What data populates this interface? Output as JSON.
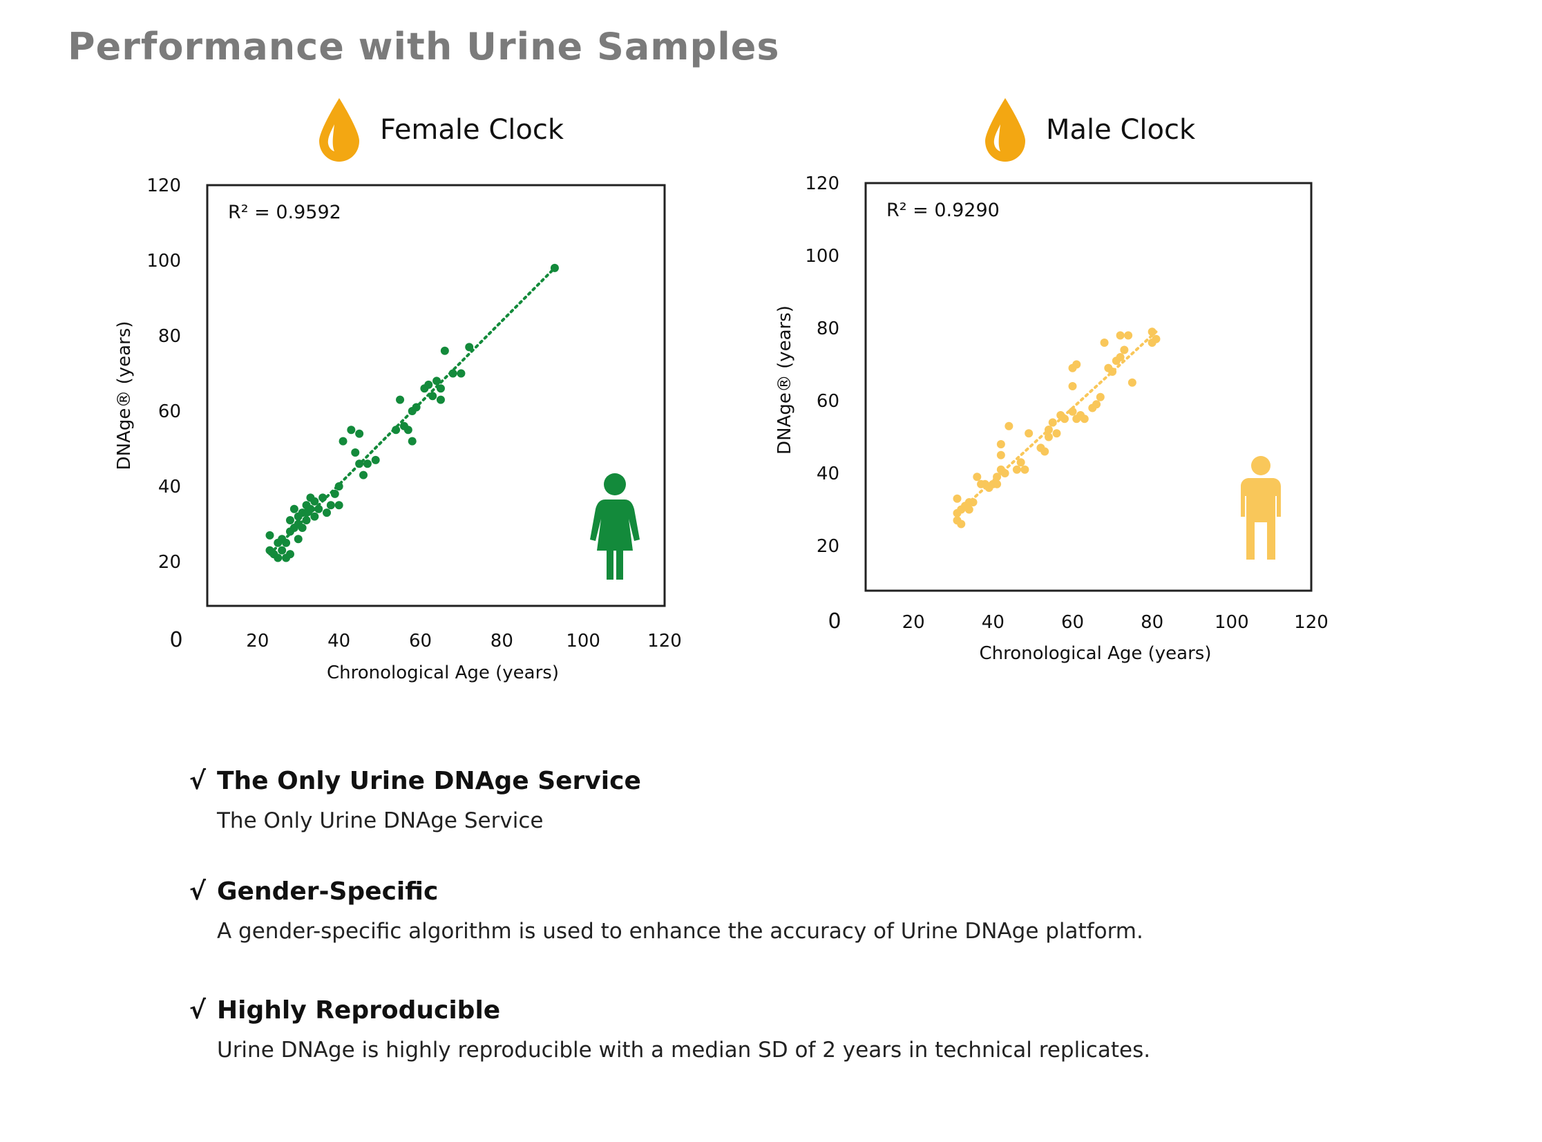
{
  "page": {
    "title": "Performance with Urine Samples"
  },
  "colors": {
    "title_gray": "#7b7b7b",
    "female_green": "#138a3b",
    "male_yellow": "#f9c75a",
    "drop_orange": "#f3a712"
  },
  "icons": {
    "drop": "droplet-icon",
    "female": "female-person-icon",
    "male": "male-person-icon"
  },
  "chart_data": [
    {
      "type": "scatter",
      "title": "Female Clock",
      "xlabel": "Chronological Age (years)",
      "ylabel": "DNAge® (years)",
      "annotation": "R² = 0.9592",
      "xlim": [
        0,
        120
      ],
      "ylim": [
        0,
        120
      ],
      "xticks": [
        "0",
        "20",
        "40",
        "60",
        "80",
        "100",
        "120"
      ],
      "yticks": [
        "20",
        "40",
        "60",
        "80",
        "100",
        "120"
      ],
      "color": "#138a3b",
      "trendline": {
        "x": [
          23,
          93
        ],
        "y": [
          22,
          98
        ]
      },
      "points": [
        [
          23,
          27
        ],
        [
          23,
          23
        ],
        [
          24,
          22
        ],
        [
          25,
          21
        ],
        [
          25,
          25
        ],
        [
          26,
          23
        ],
        [
          26,
          26
        ],
        [
          27,
          21
        ],
        [
          27,
          25
        ],
        [
          28,
          28
        ],
        [
          28,
          31
        ],
        [
          28,
          22
        ],
        [
          29,
          34
        ],
        [
          29,
          29
        ],
        [
          30,
          30
        ],
        [
          30,
          26
        ],
        [
          30,
          32
        ],
        [
          31,
          33
        ],
        [
          31,
          29
        ],
        [
          32,
          35
        ],
        [
          32,
          31
        ],
        [
          32,
          33
        ],
        [
          33,
          37
        ],
        [
          33,
          34
        ],
        [
          34,
          32
        ],
        [
          34,
          36
        ],
        [
          35,
          34
        ],
        [
          36,
          37
        ],
        [
          37,
          33
        ],
        [
          38,
          35
        ],
        [
          39,
          38
        ],
        [
          40,
          40
        ],
        [
          40,
          35
        ],
        [
          41,
          52
        ],
        [
          43,
          55
        ],
        [
          44,
          49
        ],
        [
          45,
          46
        ],
        [
          45,
          54
        ],
        [
          46,
          43
        ],
        [
          47,
          46
        ],
        [
          49,
          47
        ],
        [
          54,
          55
        ],
        [
          55,
          63
        ],
        [
          56,
          56
        ],
        [
          57,
          55
        ],
        [
          58,
          52
        ],
        [
          58,
          60
        ],
        [
          59,
          61
        ],
        [
          61,
          66
        ],
        [
          62,
          67
        ],
        [
          63,
          64
        ],
        [
          64,
          68
        ],
        [
          65,
          66
        ],
        [
          65,
          63
        ],
        [
          66,
          76
        ],
        [
          68,
          70
        ],
        [
          70,
          70
        ],
        [
          72,
          77
        ],
        [
          93,
          98
        ]
      ]
    },
    {
      "type": "scatter",
      "title": "Male Clock",
      "xlabel": "Chronological Age (years)",
      "ylabel": "DNAge® (years)",
      "annotation": "R² = 0.9290",
      "xlim": [
        0,
        120
      ],
      "ylim": [
        0,
        120
      ],
      "xticks": [
        "0",
        "20",
        "40",
        "60",
        "80",
        "100",
        "120"
      ],
      "yticks": [
        "20",
        "40",
        "60",
        "80",
        "100",
        "120"
      ],
      "color": "#f9c75a",
      "trendline": {
        "x": [
          31,
          81
        ],
        "y": [
          29,
          79
        ]
      },
      "points": [
        [
          31,
          27
        ],
        [
          31,
          29
        ],
        [
          31,
          33
        ],
        [
          32,
          30
        ],
        [
          32,
          26
        ],
        [
          33,
          31
        ],
        [
          34,
          32
        ],
        [
          34,
          30
        ],
        [
          35,
          32
        ],
        [
          36,
          39
        ],
        [
          37,
          37
        ],
        [
          38,
          37
        ],
        [
          39,
          36
        ],
        [
          40,
          37
        ],
        [
          41,
          37
        ],
        [
          41,
          39
        ],
        [
          42,
          41
        ],
        [
          42,
          45
        ],
        [
          42,
          48
        ],
        [
          43,
          40
        ],
        [
          44,
          53
        ],
        [
          46,
          41
        ],
        [
          47,
          43
        ],
        [
          48,
          41
        ],
        [
          49,
          51
        ],
        [
          52,
          47
        ],
        [
          53,
          46
        ],
        [
          54,
          52
        ],
        [
          54,
          50
        ],
        [
          55,
          54
        ],
        [
          56,
          51
        ],
        [
          57,
          56
        ],
        [
          58,
          55
        ],
        [
          60,
          57
        ],
        [
          60,
          64
        ],
        [
          60,
          69
        ],
        [
          61,
          70
        ],
        [
          61,
          55
        ],
        [
          62,
          56
        ],
        [
          63,
          55
        ],
        [
          65,
          58
        ],
        [
          66,
          59
        ],
        [
          67,
          61
        ],
        [
          68,
          76
        ],
        [
          69,
          69
        ],
        [
          70,
          68
        ],
        [
          71,
          71
        ],
        [
          72,
          72
        ],
        [
          72,
          78
        ],
        [
          73,
          74
        ],
        [
          74,
          78
        ],
        [
          75,
          65
        ],
        [
          80,
          79
        ],
        [
          80,
          76
        ],
        [
          81,
          77
        ]
      ]
    }
  ],
  "bullets": [
    {
      "check": "√",
      "heading": "The Only Urine DNAge Service",
      "body": "The Only Urine DNAge Service"
    },
    {
      "check": "√",
      "heading": "Gender-Specific",
      "body": "A gender-specific algorithm is used to enhance the accuracy of Urine DNAge platform."
    },
    {
      "check": "√",
      "heading": "Highly Reproducible",
      "body": "Urine DNAge is highly reproducible with a median SD of 2 years in technical replicates."
    }
  ]
}
